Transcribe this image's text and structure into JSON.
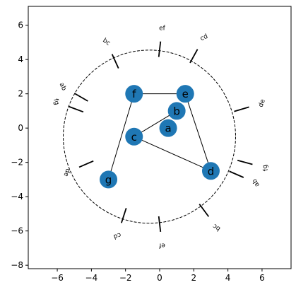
{
  "axes": {
    "x_ticks": [
      "−6",
      "−4",
      "−2",
      "0",
      "2",
      "4",
      "6"
    ],
    "y_ticks": [
      "6",
      "4",
      "2",
      "0",
      "−2",
      "−4",
      "−6",
      "−8"
    ],
    "xlim": [
      -7.7,
      7.7
    ],
    "ylim": [
      -8.2,
      7.1
    ]
  },
  "circle": {
    "center": [
      -0.6,
      -0.5
    ],
    "radius": 5.05,
    "style": "dashed"
  },
  "nodes": [
    {
      "id": "a",
      "label": "a",
      "x": 0.5,
      "y": 0.0
    },
    {
      "id": "b",
      "label": "b",
      "x": 1.0,
      "y": 1.0
    },
    {
      "id": "c",
      "label": "c",
      "x": -1.5,
      "y": -0.5
    },
    {
      "id": "d",
      "label": "d",
      "x": 3.0,
      "y": -2.5
    },
    {
      "id": "e",
      "label": "e",
      "x": 1.5,
      "y": 2.0
    },
    {
      "id": "f",
      "label": "f",
      "x": -1.5,
      "y": 2.0
    },
    {
      "id": "g",
      "label": "g",
      "x": -3.0,
      "y": -3.0
    }
  ],
  "edges": [
    [
      "f",
      "e"
    ],
    [
      "e",
      "d"
    ],
    [
      "d",
      "c"
    ],
    [
      "c",
      "b"
    ],
    [
      "f",
      "g"
    ]
  ],
  "node_color": "#1f77b4",
  "boundary_segments": [
    {
      "label": "ef",
      "x": 0.0,
      "y": 4.6,
      "angle": 0
    },
    {
      "label": "cd",
      "x": 2.0,
      "y": 4.2,
      "angle": -25
    },
    {
      "label": "de",
      "x": 4.8,
      "y": 1.1,
      "angle": -70
    },
    {
      "label": "fg",
      "x": 5.0,
      "y": -2.0,
      "angle": -105
    },
    {
      "label": "ab",
      "x": 4.5,
      "y": -2.7,
      "angle": -120
    },
    {
      "label": "bc",
      "x": 2.6,
      "y": -4.8,
      "angle": -145
    },
    {
      "label": "ef",
      "x": 0.0,
      "y": -5.6,
      "angle": 180
    },
    {
      "label": "cd",
      "x": -2.1,
      "y": -5.1,
      "angle": 160
    },
    {
      "label": "de",
      "x": -4.3,
      "y": -2.1,
      "angle": 110
    },
    {
      "label": "fg",
      "x": -4.9,
      "y": 1.1,
      "angle": 75
    },
    {
      "label": "ab",
      "x": -4.6,
      "y": 1.8,
      "angle": 65
    },
    {
      "label": "bc",
      "x": -2.6,
      "y": 3.9,
      "angle": 35
    }
  ]
}
